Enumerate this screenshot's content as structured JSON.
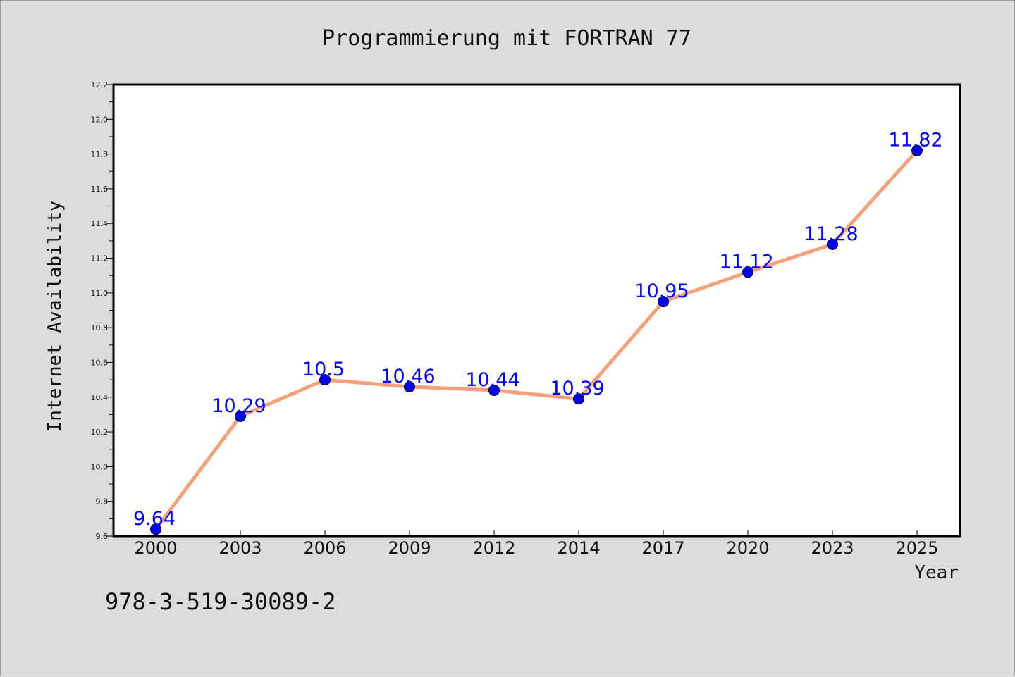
{
  "chart_data": {
    "type": "line",
    "title": "Programmierung mit FORTRAN 77",
    "xlabel": "Year",
    "ylabel": "Internet Availability",
    "categories": [
      "2000",
      "2003",
      "2006",
      "2009",
      "2012",
      "2014",
      "2017",
      "2020",
      "2023",
      "2025"
    ],
    "series": [
      {
        "values": [
          9.64,
          10.29,
          10.5,
          10.46,
          10.44,
          10.39,
          10.95,
          11.12,
          11.28,
          11.82
        ],
        "labels": [
          "9.64",
          "10.29",
          "10.5",
          "10.46",
          "10.44",
          "10.39",
          "10.95",
          "11.12",
          "11.28",
          "11.82"
        ],
        "line_color": "#f4a07a",
        "marker_color": "#0000ff"
      }
    ],
    "ylim": [
      9.6,
      12.2
    ],
    "yticks": [
      "9.6",
      "9.8",
      "10.0",
      "10.2",
      "10.4",
      "10.6",
      "10.8",
      "11.0",
      "11.2",
      "11.4",
      "11.6",
      "11.8",
      "12.0",
      "12.2"
    ],
    "grid": false,
    "legend": "none"
  },
  "footer": {
    "isbn": "978-3-519-30089-2"
  },
  "colors": {
    "background": "#dcdcdc",
    "plot_area": "#ffffff",
    "axis": "#000000"
  }
}
